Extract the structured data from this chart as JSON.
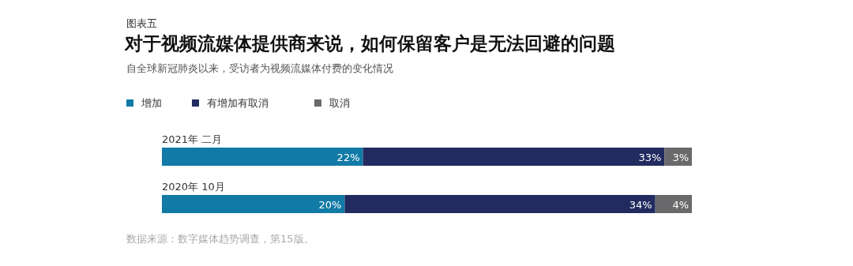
{
  "chart_data": {
    "type": "bar",
    "orientation": "horizontal",
    "stacked": true,
    "legend": "top left",
    "title": "对于视频流媒体提供商来说，如何保留客户是无法回避的问题",
    "subtitle": "自全球新冠肺炎以来，受访者为视频流媒体付费的变化情况",
    "annotations": [
      "图表五",
      "数据来源：数字媒体趋势调查，第15版。"
    ],
    "categories": [
      "2021年  二月",
      "2020年  10月"
    ],
    "series": [
      {
        "name": "增加",
        "color": "#117aa6",
        "values": [
          22,
          20
        ],
        "value_labels": [
          "22%",
          "20%"
        ]
      },
      {
        "name": "有增加有取消",
        "color": "#222b5f",
        "values": [
          33,
          34
        ],
        "value_labels": [
          "33%",
          "34%"
        ]
      },
      {
        "name": "取消",
        "color": "#6a6a6c",
        "values": [
          3,
          4
        ],
        "value_labels": [
          "3%",
          "4%"
        ]
      }
    ]
  }
}
